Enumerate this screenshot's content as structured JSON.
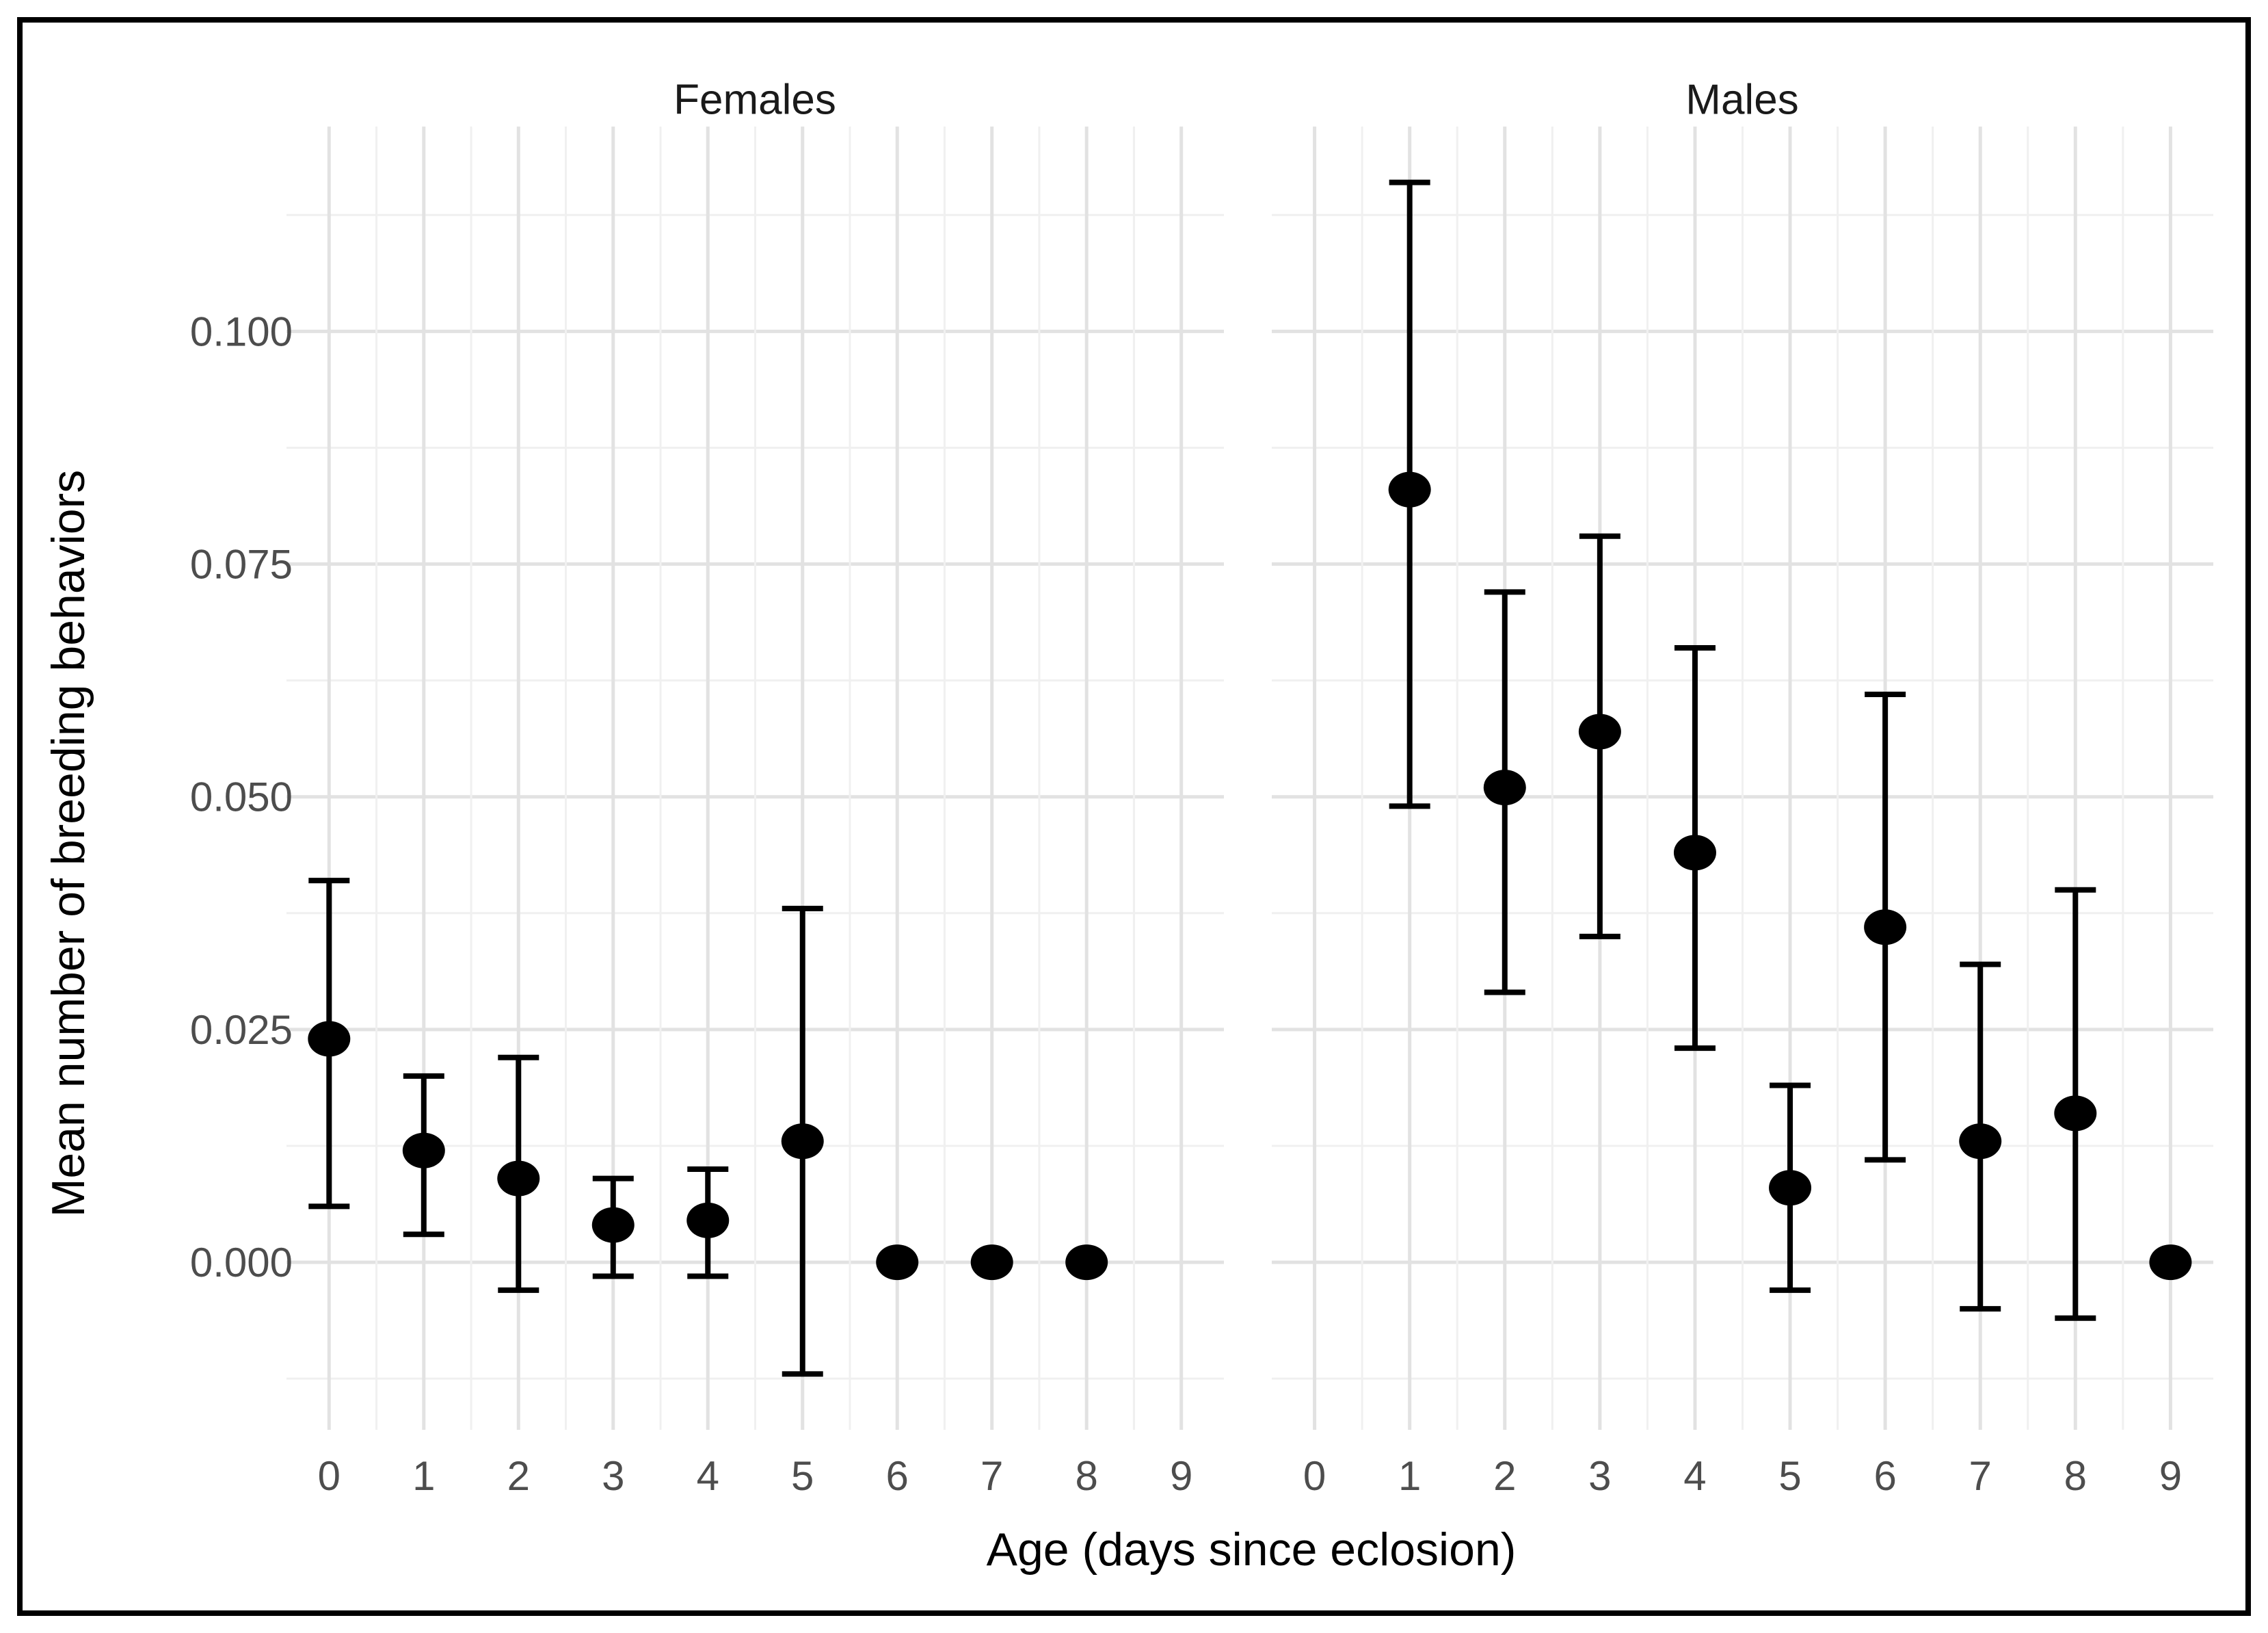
{
  "figure": {
    "background_color": "#ffffff",
    "border_color": "#000000"
  },
  "style": {
    "grid_major_color": "#e2e2e2",
    "grid_minor_color": "#f0f0f0",
    "tick_label_color": "#4d4d4d",
    "title_color": "#000000",
    "point_color": "#000000",
    "errorbar_color": "#000000"
  },
  "chart_data": {
    "type": "scatter",
    "title": "",
    "facets": [
      "Females",
      "Males"
    ],
    "xlabel": "Age (days since eclosion)",
    "ylabel": "Mean number of breeding behaviors",
    "x_tick_labels": [
      "0",
      "1",
      "2",
      "3",
      "4",
      "5",
      "6",
      "7",
      "8",
      "9"
    ],
    "x_ticks": [
      0,
      1,
      2,
      3,
      4,
      5,
      6,
      7,
      8,
      9
    ],
    "y_tick_labels": [
      "0.000",
      "0.025",
      "0.050",
      "0.075",
      "0.100"
    ],
    "y_ticks": [
      0.0,
      0.025,
      0.05,
      0.075,
      0.1
    ],
    "xlim": [
      -0.45,
      9.45
    ],
    "ylim": [
      -0.018,
      0.122
    ],
    "grid": {
      "y_major_step": 0.025,
      "y_minor_step": 0.0125,
      "x_major_step": 1,
      "x_minor_step": 0.5,
      "legend": "none"
    },
    "series": [
      {
        "name": "Females",
        "points": [
          {
            "x": 0,
            "y": 0.024,
            "ymin": 0.006,
            "ymax": 0.041
          },
          {
            "x": 1,
            "y": 0.012,
            "ymin": 0.003,
            "ymax": 0.02
          },
          {
            "x": 2,
            "y": 0.009,
            "ymin": -0.003,
            "ymax": 0.022
          },
          {
            "x": 3,
            "y": 0.004,
            "ymin": -0.0015,
            "ymax": 0.009
          },
          {
            "x": 4,
            "y": 0.0045,
            "ymin": -0.0015,
            "ymax": 0.01
          },
          {
            "x": 5,
            "y": 0.013,
            "ymin": -0.012,
            "ymax": 0.038
          },
          {
            "x": 6,
            "y": 0.0,
            "ymin": null,
            "ymax": null
          },
          {
            "x": 7,
            "y": 0.0,
            "ymin": null,
            "ymax": null
          },
          {
            "x": 8,
            "y": 0.0,
            "ymin": null,
            "ymax": null
          }
        ]
      },
      {
        "name": "Males",
        "points": [
          {
            "x": 1,
            "y": 0.083,
            "ymin": 0.049,
            "ymax": 0.116
          },
          {
            "x": 2,
            "y": 0.051,
            "ymin": 0.029,
            "ymax": 0.072
          },
          {
            "x": 3,
            "y": 0.057,
            "ymin": 0.035,
            "ymax": 0.078
          },
          {
            "x": 4,
            "y": 0.044,
            "ymin": 0.023,
            "ymax": 0.066
          },
          {
            "x": 5,
            "y": 0.008,
            "ymin": -0.003,
            "ymax": 0.019
          },
          {
            "x": 6,
            "y": 0.036,
            "ymin": 0.011,
            "ymax": 0.061
          },
          {
            "x": 7,
            "y": 0.013,
            "ymin": -0.005,
            "ymax": 0.032
          },
          {
            "x": 8,
            "y": 0.016,
            "ymin": -0.006,
            "ymax": 0.04
          },
          {
            "x": 9,
            "y": 0.0,
            "ymin": null,
            "ymax": null
          }
        ]
      }
    ]
  }
}
